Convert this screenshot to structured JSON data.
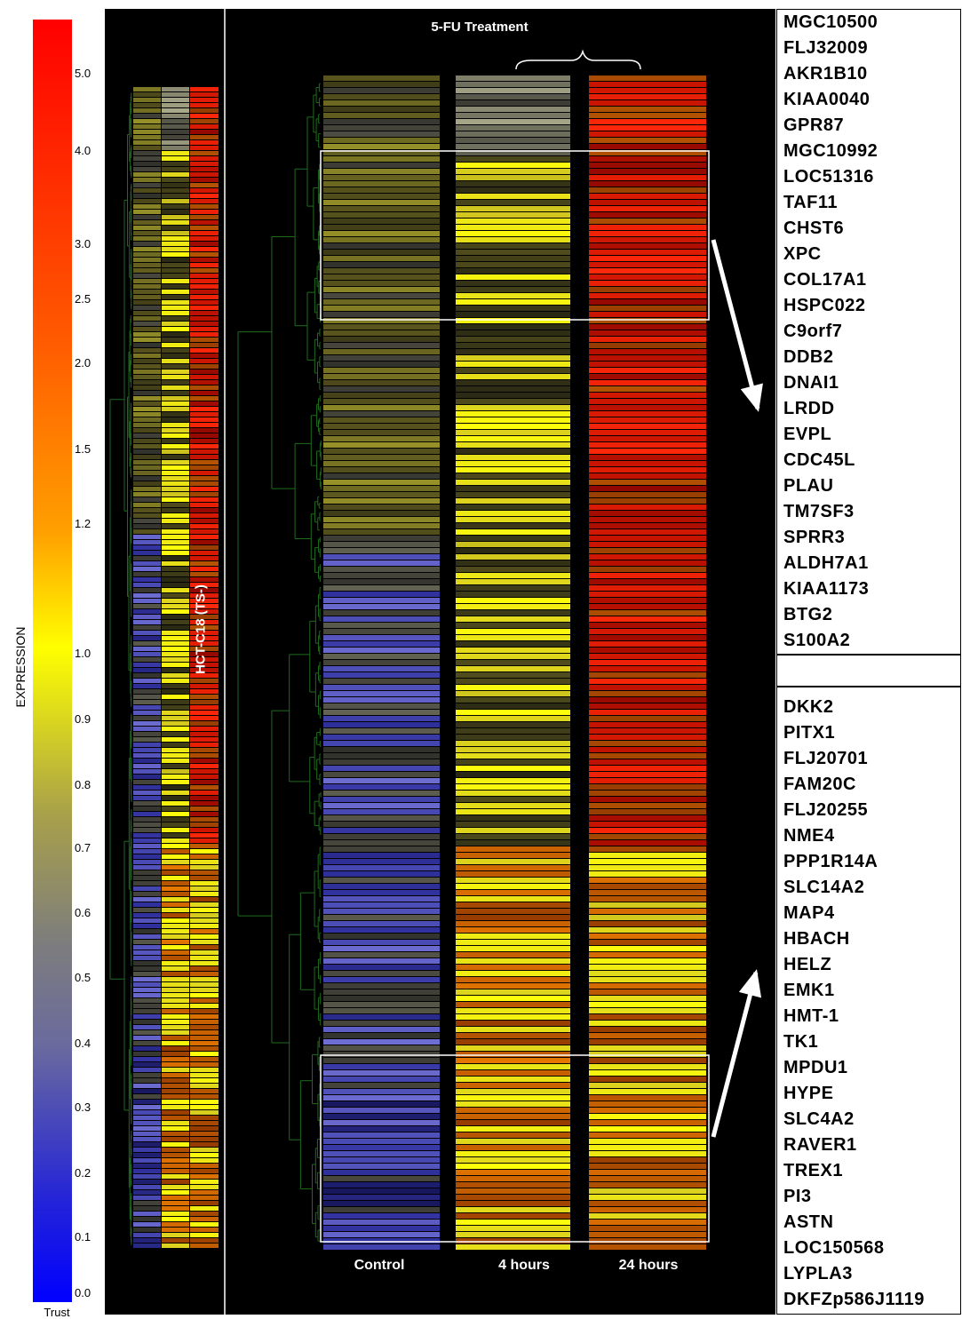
{
  "scale": {
    "label": "EXPRESSION",
    "bottom_label": "Trust",
    "ticks": [
      {
        "value": "5.0",
        "top": 76
      },
      {
        "value": "4.0",
        "top": 163
      },
      {
        "value": "3.0",
        "top": 268
      },
      {
        "value": "2.5",
        "top": 330
      },
      {
        "value": "2.0",
        "top": 402
      },
      {
        "value": "1.5",
        "top": 499
      },
      {
        "value": "1.2",
        "top": 583
      },
      {
        "value": "1.0",
        "top": 729
      },
      {
        "value": "0.9",
        "top": 803
      },
      {
        "value": "0.8",
        "top": 877
      },
      {
        "value": "0.7",
        "top": 948
      },
      {
        "value": "0.6",
        "top": 1021
      },
      {
        "value": "0.5",
        "top": 1094
      },
      {
        "value": "0.4",
        "top": 1168
      },
      {
        "value": "0.3",
        "top": 1240
      },
      {
        "value": "0.2",
        "top": 1314
      },
      {
        "value": "0.1",
        "top": 1386
      },
      {
        "value": "0.0",
        "top": 1449
      }
    ]
  },
  "chart_data": {
    "type": "heatmap",
    "title": "5-FU Treatment",
    "group_label": "HCT-C18 (TS-)",
    "columns": [
      "Control",
      "4 hours",
      "24 hours"
    ],
    "color_scale": {
      "min": 0.0,
      "max": 5.0,
      "label": "EXPRESSION"
    },
    "upregulated_genes": [
      "MGC10500",
      "FLJ32009",
      "AKR1B10",
      "KIAA0040",
      "GPR87",
      "MGC10992",
      "LOC51316",
      "TAF11",
      "CHST6",
      "XPC",
      "COL17A1",
      "HSPC022",
      "C9orf7",
      "DDB2",
      "DNAI1",
      "LRDD",
      "EVPL",
      "CDC45L",
      "PLAU",
      "TM7SF3",
      "SPRR3",
      "ALDH7A1",
      "KIAA1173",
      "BTG2",
      "S100A2"
    ],
    "late_response_genes": [
      "DKK2",
      "PITX1",
      "FLJ20701",
      "FAM20C",
      "FLJ20255",
      "NME4",
      "PPP1R14A",
      "SLC14A2",
      "MAP4",
      "HBACH",
      "HELZ",
      "EMK1",
      "HMT-1",
      "TK1",
      "MPDU1",
      "HYPE",
      "SLC4A2",
      "RAVER1",
      "TREX1",
      "PI3",
      "ASTN",
      "LOC150568",
      "LYPLA3",
      "DKFZp586J1119"
    ]
  }
}
